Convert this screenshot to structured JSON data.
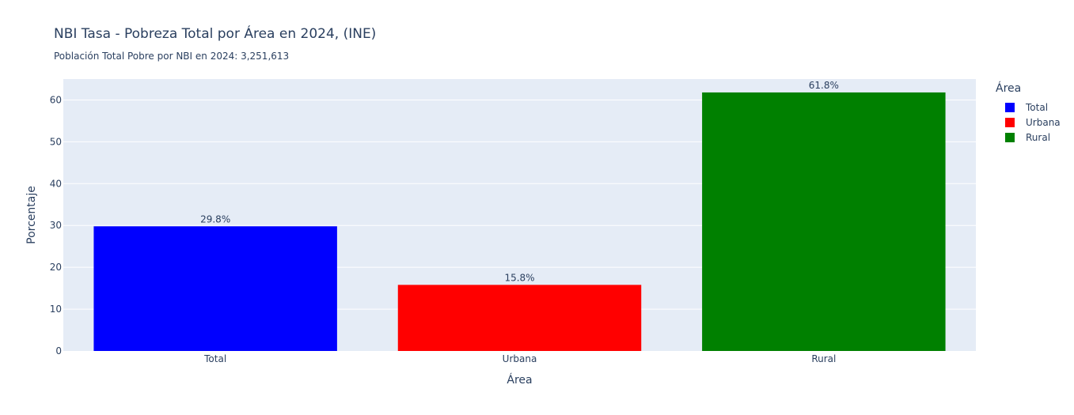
{
  "chart_data": {
    "type": "bar",
    "title": "NBI Tasa - Pobreza Total por Área en 2024, (INE)",
    "subtitle": "Población Total Pobre por NBI en 2024: 3,251,613",
    "xlabel": "Área",
    "ylabel": "Porcentaje",
    "categories": [
      "Total",
      "Urbana",
      "Rural"
    ],
    "values": [
      29.8,
      15.8,
      61.8
    ],
    "data_labels": [
      "29.8%",
      "15.8%",
      "61.8%"
    ],
    "colors": [
      "#0000ff",
      "#ff0000",
      "#008000"
    ],
    "ylim": [
      0,
      65
    ],
    "yticks": [
      0,
      10,
      20,
      30,
      40,
      50,
      60
    ],
    "grid": true,
    "plot_background": "#e5ecf6",
    "legend": {
      "title": "Área",
      "placement": "top-right",
      "entries": [
        "Total",
        "Urbana",
        "Rural"
      ]
    }
  }
}
